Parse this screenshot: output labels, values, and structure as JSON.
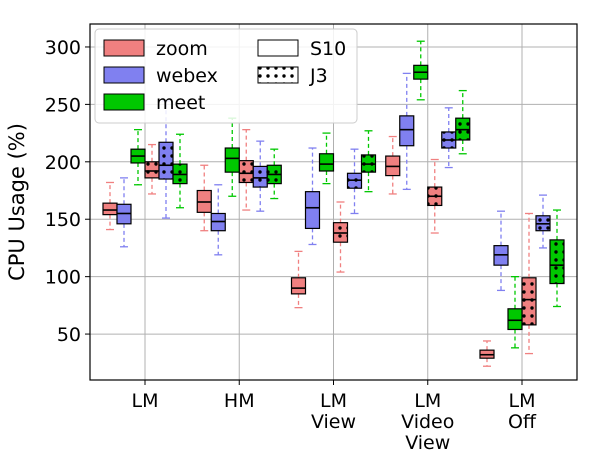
{
  "chart_data": {
    "type": "box",
    "ylabel": "CPU Usage (%)",
    "ylim": [
      10,
      320
    ],
    "yticks": [
      50,
      100,
      150,
      200,
      250,
      300
    ],
    "grid": true,
    "legend_placement": "top-left",
    "categories": [
      [
        "LM"
      ],
      [
        "HM"
      ],
      [
        "LM",
        "View"
      ],
      [
        "LM",
        "Video",
        "View"
      ],
      [
        "LM",
        "Off"
      ]
    ],
    "apps": [
      {
        "name": "zoom",
        "color": "#f08080"
      },
      {
        "name": "webex",
        "color": "#8080f0"
      },
      {
        "name": "meet",
        "color": "#00c800"
      }
    ],
    "devices": [
      {
        "name": "S10",
        "pattern": "plain"
      },
      {
        "name": "J3",
        "pattern": "dotted"
      }
    ],
    "series": [
      {
        "app": "zoom",
        "device": "S10",
        "boxes": [
          {
            "min": 141,
            "q1": 154,
            "median": 158,
            "q3": 164,
            "max": 182
          },
          {
            "min": 140,
            "q1": 156,
            "median": 165,
            "q3": 175,
            "max": 197
          },
          {
            "min": 73,
            "q1": 85,
            "median": 90,
            "q3": 99,
            "max": 122
          },
          {
            "min": 172,
            "q1": 188,
            "median": 196,
            "q3": 205,
            "max": 222
          },
          {
            "min": 22,
            "q1": 29,
            "median": 32,
            "q3": 36,
            "max": 44
          }
        ]
      },
      {
        "app": "zoom",
        "device": "J3",
        "boxes": [
          {
            "min": 172,
            "q1": 186,
            "median": 192,
            "q3": 200,
            "max": 215
          },
          {
            "min": 158,
            "q1": 182,
            "median": 190,
            "q3": 201,
            "max": 228
          },
          {
            "min": 104,
            "q1": 130,
            "median": 138,
            "q3": 147,
            "max": 165
          },
          {
            "min": 138,
            "q1": 162,
            "median": 170,
            "q3": 178,
            "max": 202
          },
          {
            "min": 33,
            "q1": 58,
            "median": 80,
            "q3": 99,
            "max": 155
          }
        ]
      },
      {
        "app": "webex",
        "device": "S10",
        "boxes": [
          {
            "min": 126,
            "q1": 146,
            "median": 155,
            "q3": 163,
            "max": 186
          },
          {
            "min": 119,
            "q1": 140,
            "median": 148,
            "q3": 155,
            "max": 180
          },
          {
            "min": 128,
            "q1": 142,
            "median": 160,
            "q3": 174,
            "max": 212
          },
          {
            "min": 176,
            "q1": 214,
            "median": 228,
            "q3": 240,
            "max": 277
          },
          {
            "min": 88,
            "q1": 110,
            "median": 119,
            "q3": 127,
            "max": 157
          }
        ]
      },
      {
        "app": "webex",
        "device": "J3",
        "boxes": [
          {
            "min": 151,
            "q1": 185,
            "median": 197,
            "q3": 217,
            "max": 253
          },
          {
            "min": 157,
            "q1": 178,
            "median": 186,
            "q3": 196,
            "max": 218
          },
          {
            "min": 155,
            "q1": 177,
            "median": 184,
            "q3": 190,
            "max": 211
          },
          {
            "min": 195,
            "q1": 212,
            "median": 219,
            "q3": 226,
            "max": 247
          },
          {
            "min": 125,
            "q1": 140,
            "median": 146,
            "q3": 153,
            "max": 171
          }
        ]
      },
      {
        "app": "meet",
        "device": "S10",
        "boxes": [
          {
            "min": 180,
            "q1": 199,
            "median": 205,
            "q3": 211,
            "max": 228
          },
          {
            "min": 170,
            "q1": 191,
            "median": 203,
            "q3": 212,
            "max": 238
          },
          {
            "min": 181,
            "q1": 192,
            "median": 198,
            "q3": 207,
            "max": 225
          },
          {
            "min": 254,
            "q1": 272,
            "median": 278,
            "q3": 284,
            "max": 305
          },
          {
            "min": 38,
            "q1": 54,
            "median": 62,
            "q3": 72,
            "max": 100
          }
        ]
      },
      {
        "app": "meet",
        "device": "J3",
        "boxes": [
          {
            "min": 160,
            "q1": 181,
            "median": 189,
            "q3": 198,
            "max": 224
          },
          {
            "min": 168,
            "q1": 181,
            "median": 189,
            "q3": 197,
            "max": 211
          },
          {
            "min": 174,
            "q1": 191,
            "median": 198,
            "q3": 206,
            "max": 227
          },
          {
            "min": 207,
            "q1": 219,
            "median": 228,
            "q3": 238,
            "max": 262
          },
          {
            "min": 74,
            "q1": 94,
            "median": 110,
            "q3": 132,
            "max": 158
          }
        ]
      }
    ]
  }
}
